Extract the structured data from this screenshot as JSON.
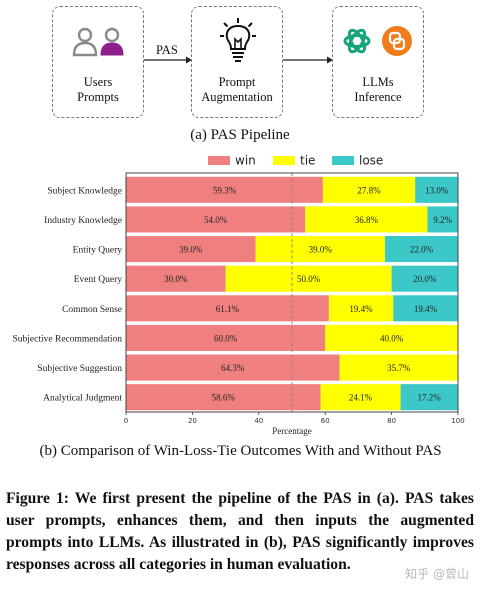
{
  "pipeline": {
    "box1": {
      "line1": "Users",
      "line2": "Prompts"
    },
    "arrow1_label": "PAS",
    "box2": {
      "line1": "Prompt",
      "line2": "Augmentation"
    },
    "box3": {
      "line1": "LLMs",
      "line2": "Inference"
    },
    "caption": "(a) PAS Pipeline",
    "icons": [
      "user-icon",
      "lightbulb-icon",
      "openai-icon",
      "logo-icon"
    ],
    "colors": {
      "user_gray": "#8a8a8a",
      "user_purple": "#8e1f8e",
      "openai_green": "#19a37a",
      "logo_orange": "#f07c1c"
    }
  },
  "chart_data": {
    "type": "bar",
    "orientation": "horizontal",
    "stacked": true,
    "categories": [
      "Subject Knowledge",
      "Industry Knowledge",
      "Entity Query",
      "Event Query",
      "Common Sense",
      "Subjective Recommendation",
      "Subjective Suggestion",
      "Analytical Judgment"
    ],
    "series": [
      {
        "name": "win",
        "color": "#f08080",
        "values": [
          59.3,
          54.0,
          39.0,
          30.0,
          61.1,
          60.0,
          64.3,
          58.6
        ],
        "labels": [
          "59.3%",
          "54.0%",
          "39.0%",
          "30.0%",
          "61.1%",
          "60.0%",
          "64.3%",
          "58.6%"
        ]
      },
      {
        "name": "tie",
        "color": "#ffff00",
        "values": [
          27.8,
          36.8,
          39.0,
          50.0,
          19.4,
          40.0,
          35.7,
          24.1
        ],
        "labels": [
          "27.8%",
          "36.8%",
          "39.0%",
          "50.0%",
          "19.4%",
          "40.0%",
          "35.7%",
          "24.1%"
        ]
      },
      {
        "name": "lose",
        "color": "#3cc8c8",
        "values": [
          13.0,
          9.2,
          22.0,
          20.0,
          19.4,
          0,
          0,
          17.2
        ],
        "labels": [
          "13.0%",
          "9.2%",
          "22.0%",
          "20.0%",
          "19.4%",
          "",
          "",
          "17.2%"
        ]
      }
    ],
    "xlabel": "Percentage",
    "xlim": [
      0,
      100
    ],
    "xticks": [
      "0",
      "20",
      "40",
      "60",
      "80",
      "100"
    ],
    "reference_line": 50,
    "legend": "top-center",
    "grid": false
  },
  "chart_caption": "(b) Comparison of Win-Loss-Tie Outcomes With and Without PAS",
  "figure_caption": "Figure 1: We first present the pipeline of the PAS in (a). PAS takes user prompts, enhances them, and then inputs the augmented prompts into LLMs. As illustrated in (b), PAS significantly improves responses across all categories in human evaluation.",
  "watermark": "知乎 @曾山"
}
